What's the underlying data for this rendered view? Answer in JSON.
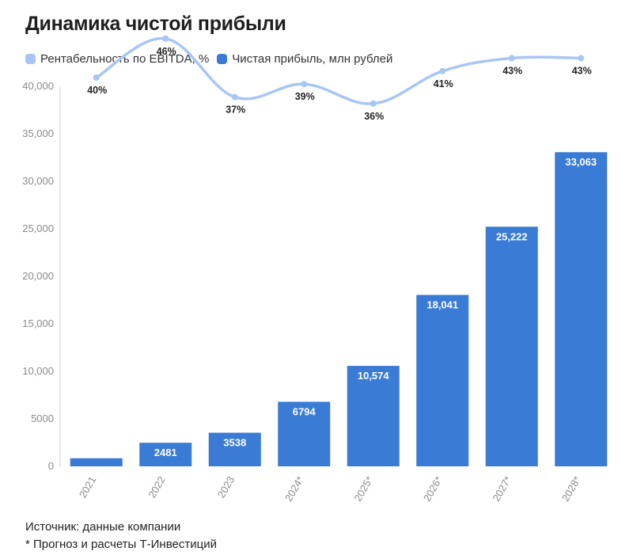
{
  "title": "Динамика чистой прибыли",
  "legend": [
    {
      "label": "Рентабельность по EBITDA, %",
      "color": "#a8c6f4"
    },
    {
      "label": "Чистая прибыль, млн рублей",
      "color": "#3a7bd5"
    }
  ],
  "footnotes": {
    "source": "Источник: данные компании",
    "note": "* Прогноз и расчеты Т-Инвестиций"
  },
  "chart_data": {
    "type": "bar",
    "categories": [
      "2021",
      "2022",
      "2023",
      "2024*",
      "2025*",
      "2026*",
      "2027*",
      "2028*"
    ],
    "series": [
      {
        "name": "Чистая прибыль, млн рублей",
        "type": "bar",
        "color": "#3a7bd5",
        "values": [
          850,
          2481,
          3538,
          6794,
          10574,
          18041,
          25222,
          33063
        ],
        "labels": [
          "",
          "2481",
          "3538",
          "6794",
          "10,574",
          "18,041",
          "25,222",
          "33,063"
        ]
      },
      {
        "name": "Рентабельность по EBITDA, %",
        "type": "line",
        "color": "#a8c6f4",
        "values": [
          40,
          46,
          37,
          39,
          36,
          41,
          43,
          43
        ],
        "labels": [
          "40%",
          "46%",
          "37%",
          "39%",
          "36%",
          "41%",
          "43%",
          "43%"
        ]
      }
    ],
    "y_ticks": [
      "0",
      "5000",
      "10,000",
      "15,000",
      "20,000",
      "25,000",
      "30,000",
      "35,000",
      "40,000"
    ],
    "ylim": [
      0,
      40000
    ],
    "grid": false,
    "legend_position": "top-left"
  }
}
